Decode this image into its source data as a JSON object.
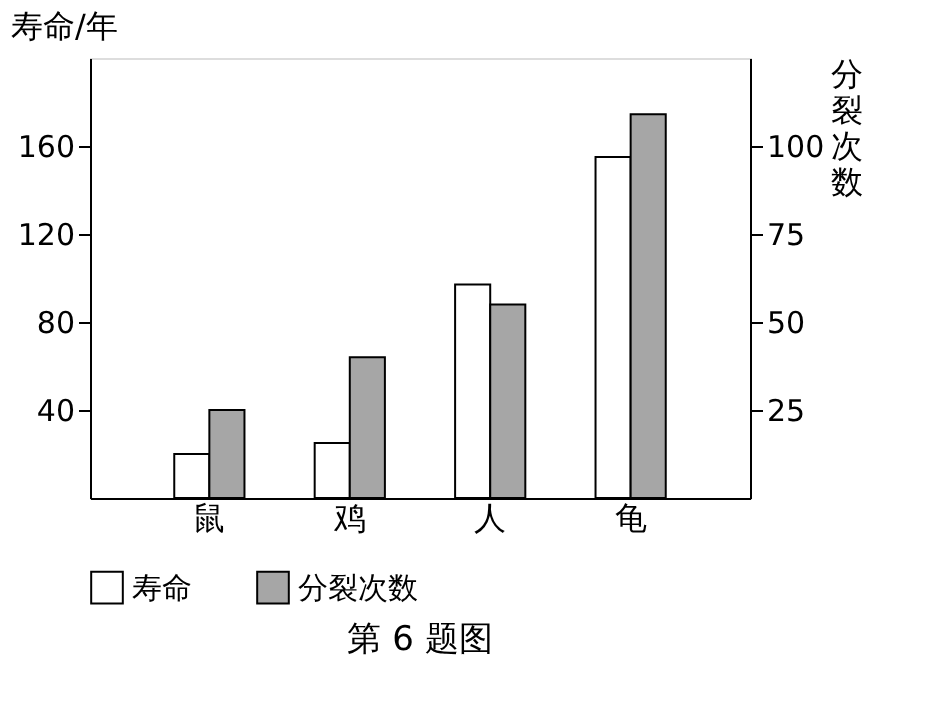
{
  "chart_data": {
    "type": "bar",
    "categories": [
      "鼠",
      "鸡",
      "人",
      "龟"
    ],
    "series": [
      {
        "name": "寿命",
        "color": "#ffffff",
        "values": [
          20,
          25,
          97,
          155
        ]
      },
      {
        "name": "分裂次数",
        "color": "#a6a6a6",
        "values": [
          25,
          40,
          55,
          109
        ],
        "axis": "y2"
      }
    ],
    "ylabel": "寿命/年",
    "y2label": "分裂次数",
    "ylim": [
      0,
      200
    ],
    "yticks": [
      40,
      80,
      120,
      160
    ],
    "y2lim": [
      0,
      125
    ],
    "y2ticks": [
      25,
      50,
      75,
      100
    ],
    "legend": "bottom",
    "grid": false,
    "annotations": [
      "第 6 题图"
    ]
  }
}
